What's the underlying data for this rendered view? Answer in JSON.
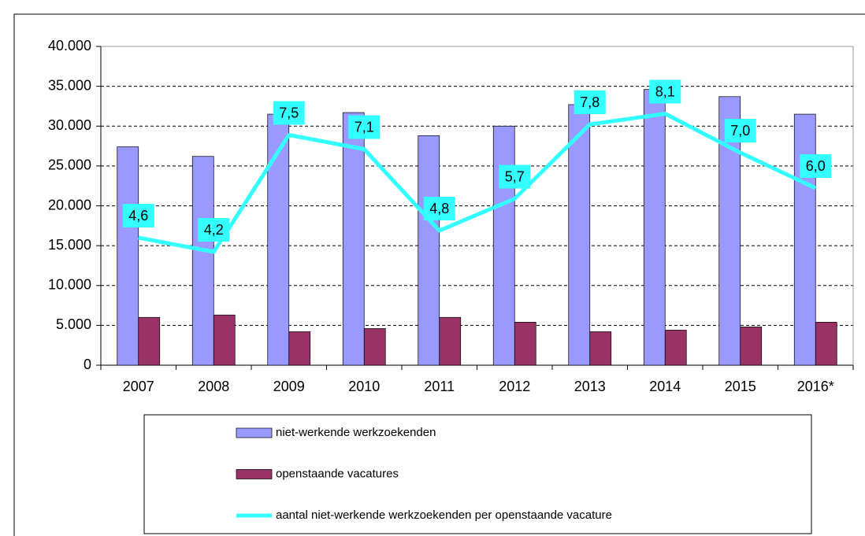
{
  "chart_data": {
    "type": "bar-line",
    "categories": [
      "2007",
      "2008",
      "2009",
      "2010",
      "2011",
      "2012",
      "2013",
      "2014",
      "2015",
      "2016*"
    ],
    "series": [
      {
        "name": "niet-werkende werkzoekenden",
        "type": "bar",
        "color": "#9999ff",
        "values": [
          27400,
          26200,
          31500,
          31700,
          28800,
          30000,
          32700,
          34600,
          33700,
          31500
        ]
      },
      {
        "name": "openstaande vacatures",
        "type": "bar",
        "color": "#993366",
        "values": [
          6000,
          6300,
          4200,
          4600,
          6000,
          5400,
          4200,
          4400,
          4800,
          5400
        ]
      },
      {
        "name": "aantal niet-werkende werkzoekenden per openstaande vacature",
        "type": "line",
        "color": "#33ffff",
        "axis": "y2",
        "values": [
          4.6,
          4.2,
          7.5,
          7.1,
          4.8,
          5.7,
          7.8,
          8.1,
          7.0,
          6.0
        ],
        "value_labels": [
          "4,6",
          "4,2",
          "7,5",
          "7,1",
          "4,8",
          "5,7",
          "7,8",
          "8,1",
          "7,0",
          "6,0"
        ]
      }
    ],
    "ylim": [
      0,
      40000
    ],
    "yticks": [
      0,
      {
        "value": 5000,
        "label": "5.000"
      },
      {
        "value": 10000,
        "label": "10.000"
      },
      {
        "value": 15000,
        "label": "15.000"
      },
      {
        "value": 20000,
        "label": "20.000"
      },
      {
        "value": 25000,
        "label": "25.000"
      },
      {
        "value": 30000,
        "label": "30.000"
      },
      {
        "value": 35000,
        "label": "35.000"
      },
      {
        "value": 40000,
        "label": "40.000"
      }
    ],
    "y2lim": [
      1,
      10
    ],
    "grid": true,
    "legend": "bottom"
  }
}
